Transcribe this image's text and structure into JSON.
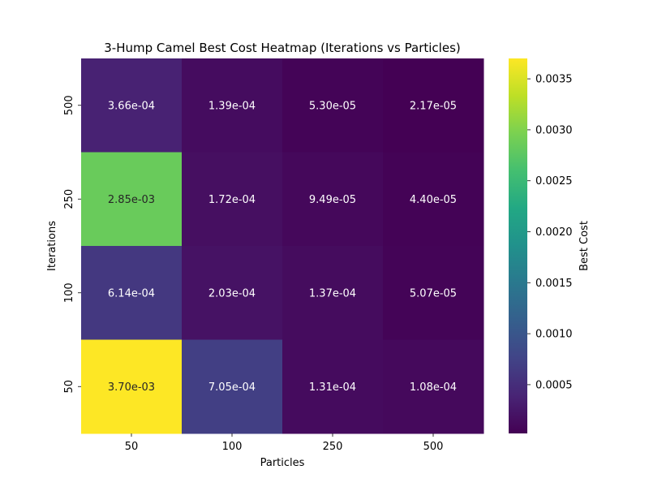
{
  "chart_data": {
    "type": "heatmap",
    "title": "3-Hump Camel Best Cost Heatmap (Iterations vs Particles)",
    "xlabel": "Particles",
    "ylabel": "Iterations",
    "x_categories": [
      "50",
      "100",
      "250",
      "500"
    ],
    "y_categories": [
      "500",
      "250",
      "100",
      "50"
    ],
    "values": [
      [
        0.000366,
        0.000139,
        5.3e-05,
        2.17e-05
      ],
      [
        0.00285,
        0.000172,
        9.49e-05,
        4.4e-05
      ],
      [
        0.000614,
        0.000203,
        0.000137,
        5.07e-05
      ],
      [
        0.0037,
        0.000705,
        0.000131,
        0.000108
      ]
    ],
    "cell_labels": [
      [
        "3.66e-04",
        "1.39e-04",
        "5.30e-05",
        "2.17e-05"
      ],
      [
        "2.85e-03",
        "1.72e-04",
        "9.49e-05",
        "4.40e-05"
      ],
      [
        "6.14e-04",
        "2.03e-04",
        "1.37e-04",
        "5.07e-05"
      ],
      [
        "3.70e-03",
        "7.05e-04",
        "1.31e-04",
        "1.08e-04"
      ]
    ],
    "colormap": "viridis",
    "colorbar": {
      "label": "Best Cost",
      "range": [
        2.17e-05,
        0.0037
      ],
      "ticks": [
        0.0005,
        0.001,
        0.0015,
        0.002,
        0.0025,
        0.003,
        0.0035
      ],
      "tick_labels": [
        "0.0005",
        "0.0010",
        "0.0015",
        "0.0020",
        "0.0025",
        "0.0030",
        "0.0035"
      ]
    }
  }
}
